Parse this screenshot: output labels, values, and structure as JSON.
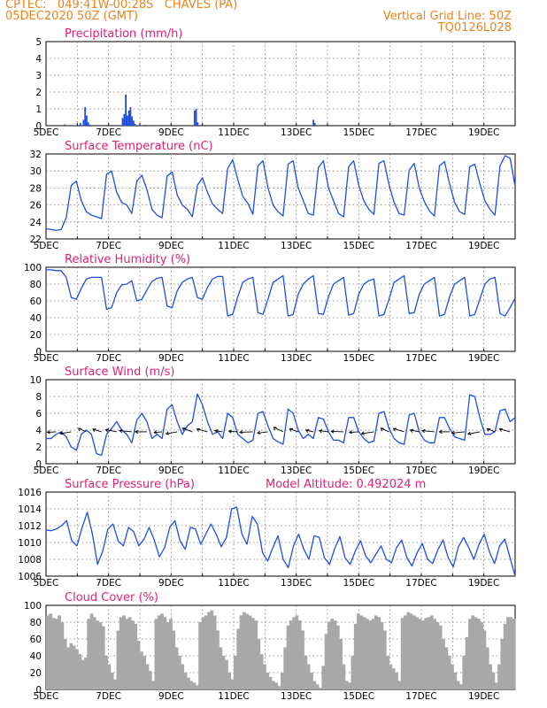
{
  "header": {
    "line1": "CPTEC:   049:41W-00:28S   CHAVES (PA)",
    "line2": "05DEC2020 50Z (GMT)",
    "grid_note": "Vertical Grid Line: 50Z",
    "model_id": "TQ0126L028"
  },
  "colors": {
    "header": "#e8841c",
    "title": "#e0207a",
    "line": "#1f4fe0",
    "cloud": "#a8a8a8",
    "wind_arrow": "#000000"
  },
  "chart_data": [
    {
      "type": "bar",
      "title": "Precipitation (mm/h)",
      "x_ticks": [
        "5DEC",
        "7DEC",
        "9DEC",
        "11DEC",
        "13DEC",
        "15DEC",
        "17DEC",
        "19DEC"
      ],
      "ylim": [
        0,
        5
      ],
      "yticks": [
        0,
        1,
        2,
        3,
        4,
        5
      ],
      "grid": true,
      "bars": [
        [
          0.6,
          0.08
        ],
        [
          0.9,
          0.03
        ],
        [
          1.1,
          0.15
        ],
        [
          1.2,
          0.35
        ],
        [
          1.25,
          1.1
        ],
        [
          1.3,
          0.6
        ],
        [
          1.35,
          0.2
        ],
        [
          1.4,
          0.05
        ],
        [
          2.45,
          0.45
        ],
        [
          2.5,
          0.7
        ],
        [
          2.55,
          1.85
        ],
        [
          2.6,
          0.6
        ],
        [
          2.65,
          0.9
        ],
        [
          2.7,
          1.1
        ],
        [
          2.75,
          0.55
        ],
        [
          2.8,
          0.3
        ],
        [
          2.85,
          0.1
        ],
        [
          3.0,
          0.05
        ],
        [
          3.15,
          0.05
        ],
        [
          3.55,
          0.03
        ],
        [
          4.75,
          0.9
        ],
        [
          4.8,
          1.0
        ],
        [
          4.85,
          0.2
        ],
        [
          8.55,
          0.35
        ],
        [
          8.6,
          0.15
        ],
        [
          13.55,
          0.03
        ]
      ]
    },
    {
      "type": "line",
      "title": "Surface Temperature (nC)",
      "x_ticks": [
        "5DEC",
        "7DEC",
        "9DEC",
        "11DEC",
        "13DEC",
        "15DEC",
        "17DEC",
        "19DEC"
      ],
      "ylim": [
        22,
        32
      ],
      "yticks": [
        22,
        24,
        26,
        28,
        30,
        32
      ],
      "grid": true,
      "values": [
        23.2,
        23.1,
        23.0,
        23.1,
        24.5,
        28.3,
        28.8,
        26.5,
        25.2,
        24.8,
        24.6,
        24.4,
        29.6,
        30.0,
        27.5,
        26.3,
        26.0,
        25.0,
        28.8,
        29.5,
        27.8,
        25.5,
        24.8,
        24.5,
        29.4,
        29.9,
        27.2,
        26.0,
        25.5,
        24.6,
        28.3,
        29.2,
        27.5,
        26.1,
        25.5,
        25.0,
        30.3,
        31.3,
        29.0,
        27.0,
        26.2,
        24.9,
        30.6,
        31.2,
        28.0,
        26.0,
        25.2,
        24.7,
        30.8,
        31.2,
        28.0,
        26.5,
        25.0,
        24.8,
        30.4,
        31.2,
        28.0,
        26.5,
        25.0,
        24.6,
        30.5,
        31.2,
        28.3,
        26.5,
        25.5,
        24.9,
        30.9,
        31.2,
        28.4,
        26.3,
        25.0,
        24.8,
        30.1,
        30.9,
        28.0,
        26.4,
        25.3,
        24.7,
        30.6,
        31.1,
        28.5,
        26.3,
        25.2,
        24.9,
        30.5,
        30.8,
        28.5,
        26.5,
        25.5,
        24.8,
        30.6,
        31.8,
        31.5,
        28.2
      ]
    },
    {
      "type": "line",
      "title": "Relative Humidity (%)",
      "x_ticks": [
        "5DEC",
        "7DEC",
        "9DEC",
        "11DEC",
        "13DEC",
        "15DEC",
        "17DEC",
        "19DEC"
      ],
      "ylim": [
        0,
        100
      ],
      "yticks": [
        0,
        20,
        40,
        60,
        80,
        100
      ],
      "grid": true,
      "values": [
        97,
        97,
        96,
        96,
        88,
        64,
        62,
        75,
        86,
        88,
        88,
        88,
        50,
        52,
        70,
        79,
        80,
        84,
        60,
        62,
        73,
        83,
        87,
        88,
        54,
        52,
        72,
        82,
        86,
        88,
        64,
        62,
        76,
        86,
        89,
        89,
        42,
        44,
        65,
        82,
        86,
        88,
        46,
        44,
        62,
        82,
        86,
        90,
        42,
        44,
        68,
        80,
        86,
        90,
        45,
        44,
        65,
        80,
        84,
        88,
        43,
        45,
        68,
        80,
        84,
        86,
        42,
        44,
        62,
        82,
        86,
        90,
        45,
        46,
        68,
        80,
        84,
        88,
        42,
        44,
        65,
        80,
        84,
        88,
        42,
        44,
        62,
        80,
        86,
        88,
        45,
        42,
        52,
        63
      ]
    },
    {
      "type": "line",
      "title": "Surface Wind (m/s)",
      "x_ticks": [
        "5DEC",
        "7DEC",
        "9DEC",
        "11DEC",
        "13DEC",
        "15DEC",
        "17DEC",
        "19DEC"
      ],
      "ylim": [
        0,
        10
      ],
      "yticks": [
        0,
        2,
        4,
        6,
        8,
        10
      ],
      "grid": true,
      "values": [
        3.0,
        3.0,
        3.5,
        3.8,
        3.2,
        2.0,
        1.6,
        3.5,
        4.0,
        3.5,
        1.2,
        1.0,
        3.5,
        4.2,
        5.0,
        4.0,
        3.5,
        2.5,
        5.2,
        6.0,
        5.0,
        3.0,
        3.5,
        3.0,
        6.5,
        7.0,
        5.0,
        3.5,
        4.5,
        5.0,
        8.3,
        7.0,
        5.0,
        3.5,
        3.8,
        3.0,
        6.0,
        5.5,
        3.5,
        3.0,
        2.5,
        2.8,
        6.0,
        6.2,
        4.5,
        3.0,
        2.6,
        2.3,
        6.5,
        6.0,
        4.0,
        3.0,
        3.5,
        3.0,
        5.5,
        5.3,
        3.8,
        2.8,
        2.8,
        2.5,
        5.5,
        5.5,
        3.8,
        3.0,
        2.5,
        2.7,
        6.0,
        6.2,
        4.2,
        3.0,
        2.5,
        2.3,
        5.8,
        6.0,
        3.8,
        2.8,
        2.5,
        2.5,
        5.5,
        5.5,
        4.2,
        3.2,
        3.0,
        2.8,
        8.2,
        8.0,
        5.5,
        3.5,
        3.5,
        3.8,
        6.3,
        6.5,
        5.0,
        5.5
      ]
    },
    {
      "type": "line",
      "title": "Surface Pressure (hPa)",
      "annotation": "Model Altitude: 0.492024 m",
      "x_ticks": [
        "5DEC",
        "7DEC",
        "9DEC",
        "11DEC",
        "13DEC",
        "15DEC",
        "17DEC",
        "19DEC"
      ],
      "ylim": [
        1006,
        1016
      ],
      "yticks": [
        1006,
        1008,
        1010,
        1012,
        1014,
        1016
      ],
      "grid": true,
      "values": [
        1011.5,
        1011.4,
        1011.6,
        1012.0,
        1012.6,
        1010.2,
        1009.6,
        1011.8,
        1013.6,
        1011.0,
        1007.4,
        1009.0,
        1011.6,
        1012.2,
        1010.2,
        1009.6,
        1011.8,
        1011.3,
        1009.6,
        1010.4,
        1011.8,
        1010.3,
        1008.3,
        1009.4,
        1011.8,
        1012.6,
        1010.2,
        1009.2,
        1011.8,
        1011.6,
        1009.8,
        1011.0,
        1012.2,
        1011.0,
        1009.5,
        1010.6,
        1014.0,
        1014.2,
        1011.0,
        1009.8,
        1013.1,
        1012.2,
        1008.8,
        1007.8,
        1009.4,
        1010.8,
        1008.0,
        1007.0,
        1009.6,
        1011.0,
        1009.2,
        1008.0,
        1010.8,
        1010.6,
        1008.2,
        1007.4,
        1009.3,
        1010.7,
        1008.2,
        1007.4,
        1009.0,
        1010.2,
        1008.4,
        1007.6,
        1008.6,
        1009.6,
        1008.0,
        1007.6,
        1009.4,
        1010.3,
        1008.2,
        1007.2,
        1008.8,
        1009.9,
        1008.0,
        1007.5,
        1009.1,
        1010.3,
        1008.2,
        1007.1,
        1009.5,
        1010.6,
        1009.4,
        1008.0,
        1009.8,
        1011.0,
        1008.9,
        1007.5,
        1009.6,
        1010.4,
        1008.2,
        1006.0
      ]
    },
    {
      "type": "bar",
      "title": "Cloud Cover (%)",
      "x_ticks": [
        "5DEC",
        "7DEC",
        "9DEC",
        "11DEC",
        "13DEC",
        "15DEC",
        "17DEC",
        "19DEC"
      ],
      "ylim": [
        0,
        100
      ],
      "yticks": [
        0,
        20,
        40,
        60,
        80,
        100
      ],
      "grid": true,
      "values": [
        88,
        90,
        85,
        84,
        88,
        80,
        60,
        50,
        55,
        52,
        48,
        42,
        35,
        38,
        84,
        90,
        86,
        82,
        80,
        75,
        40,
        30,
        20,
        12,
        70,
        86,
        88,
        84,
        86,
        82,
        78,
        58,
        45,
        40,
        30,
        22,
        10,
        84,
        88,
        90,
        86,
        80,
        84,
        70,
        50,
        40,
        30,
        20,
        14,
        10,
        8,
        5,
        80,
        86,
        88,
        92,
        94,
        88,
        70,
        50,
        40,
        35,
        20,
        12,
        40,
        72,
        88,
        92,
        90,
        88,
        85,
        82,
        60,
        42,
        30,
        20,
        15,
        10,
        8,
        4,
        20,
        50,
        76,
        82,
        86,
        88,
        82,
        70,
        40,
        30,
        20,
        10,
        6,
        2,
        28,
        66,
        80,
        84,
        82,
        76,
        60,
        30,
        10,
        8,
        40,
        78,
        90,
        88,
        86,
        84,
        82,
        84,
        88,
        86,
        80,
        70,
        40,
        30,
        25,
        20,
        10,
        85,
        88,
        92,
        90,
        88,
        86,
        84,
        82,
        85,
        86,
        88,
        84,
        80,
        76,
        60,
        50,
        40,
        30,
        20,
        10,
        6,
        40,
        62,
        84,
        88,
        86,
        84,
        80,
        70,
        50,
        30,
        20,
        8,
        30,
        60,
        78,
        86,
        86,
        84
      ]
    }
  ]
}
